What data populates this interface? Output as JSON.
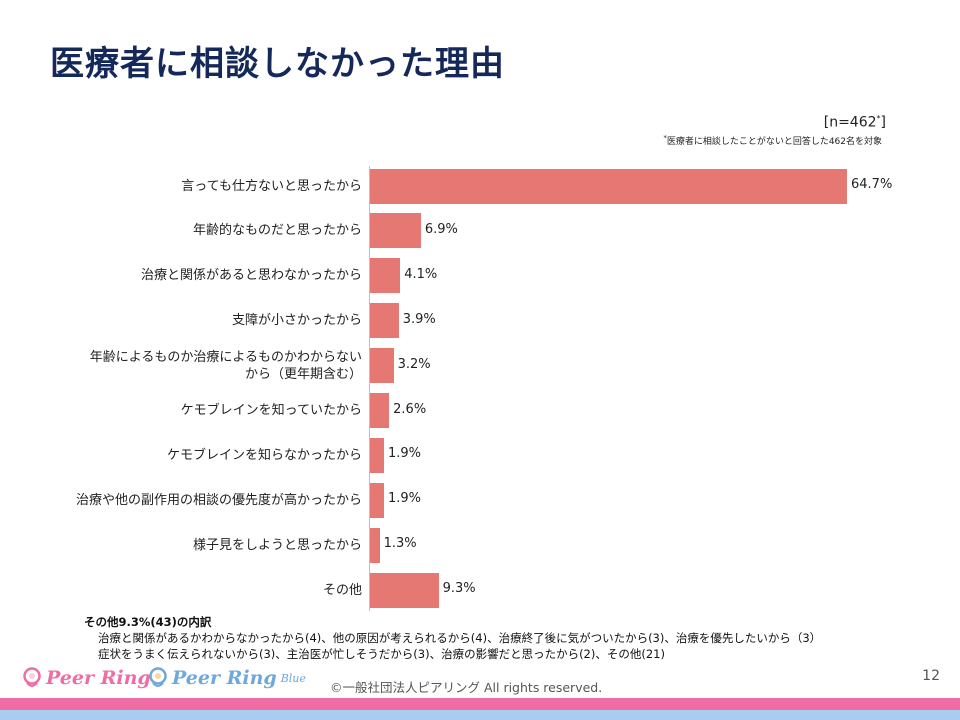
{
  "slide": {
    "title": "医療者に相談しなかった理由",
    "n_text": "[n=462",
    "n_sup": "*",
    "n_close": "]",
    "note_sup": "*",
    "note_text": "医療者に相談したことがないと回答した462名を対象",
    "page_number": "12",
    "copyright": "©一般社団法人ピアリング All rights reserved."
  },
  "chart_data": {
    "type": "bar",
    "orientation": "horizontal",
    "categories": [
      "言っても仕方ないと思ったから",
      "年齢的なものだと思ったから",
      "治療と関係があると思わなかったから",
      "支障が小さかったから",
      "年齢によるものか治療によるものかわからない\nから（更年期含む）",
      "ケモブレインを知っていたから",
      "ケモブレインを知らなかったから",
      "治療や他の副作用の相談の優先度が高かったから",
      "様子見をしようと思ったから",
      "その他"
    ],
    "values": [
      64.7,
      6.9,
      4.1,
      3.9,
      3.2,
      2.6,
      1.9,
      1.9,
      1.3,
      9.3
    ],
    "value_labels": [
      "64.7%",
      "6.9%",
      "4.1%",
      "3.9%",
      "3.2%",
      "2.6%",
      "1.9%",
      "1.9%",
      "1.3%",
      "9.3%"
    ],
    "xlim": [
      0,
      65
    ],
    "bar_color": "#e57872",
    "grid": false,
    "legend": "none"
  },
  "other_breakdown": {
    "title": "その他9.3%(43)の内訳",
    "line1": "治療と関係があるかわからなかったから(4)、他の原因が考えられるから(4)、治療終了後に気がついたから(3)、治療を優先したいから（3）",
    "line2": "症状をうまく伝えられないから(3)、主治医が忙しそうだから(3)、治療の影響だと思ったから(2)、その他(21)"
  },
  "branding": {
    "logo1_text": "Peer Ring",
    "logo2_text": "Peer Ring",
    "logo2_sub": "Blue",
    "pink": "#f06ca4",
    "blue": "#6fa8dc"
  }
}
